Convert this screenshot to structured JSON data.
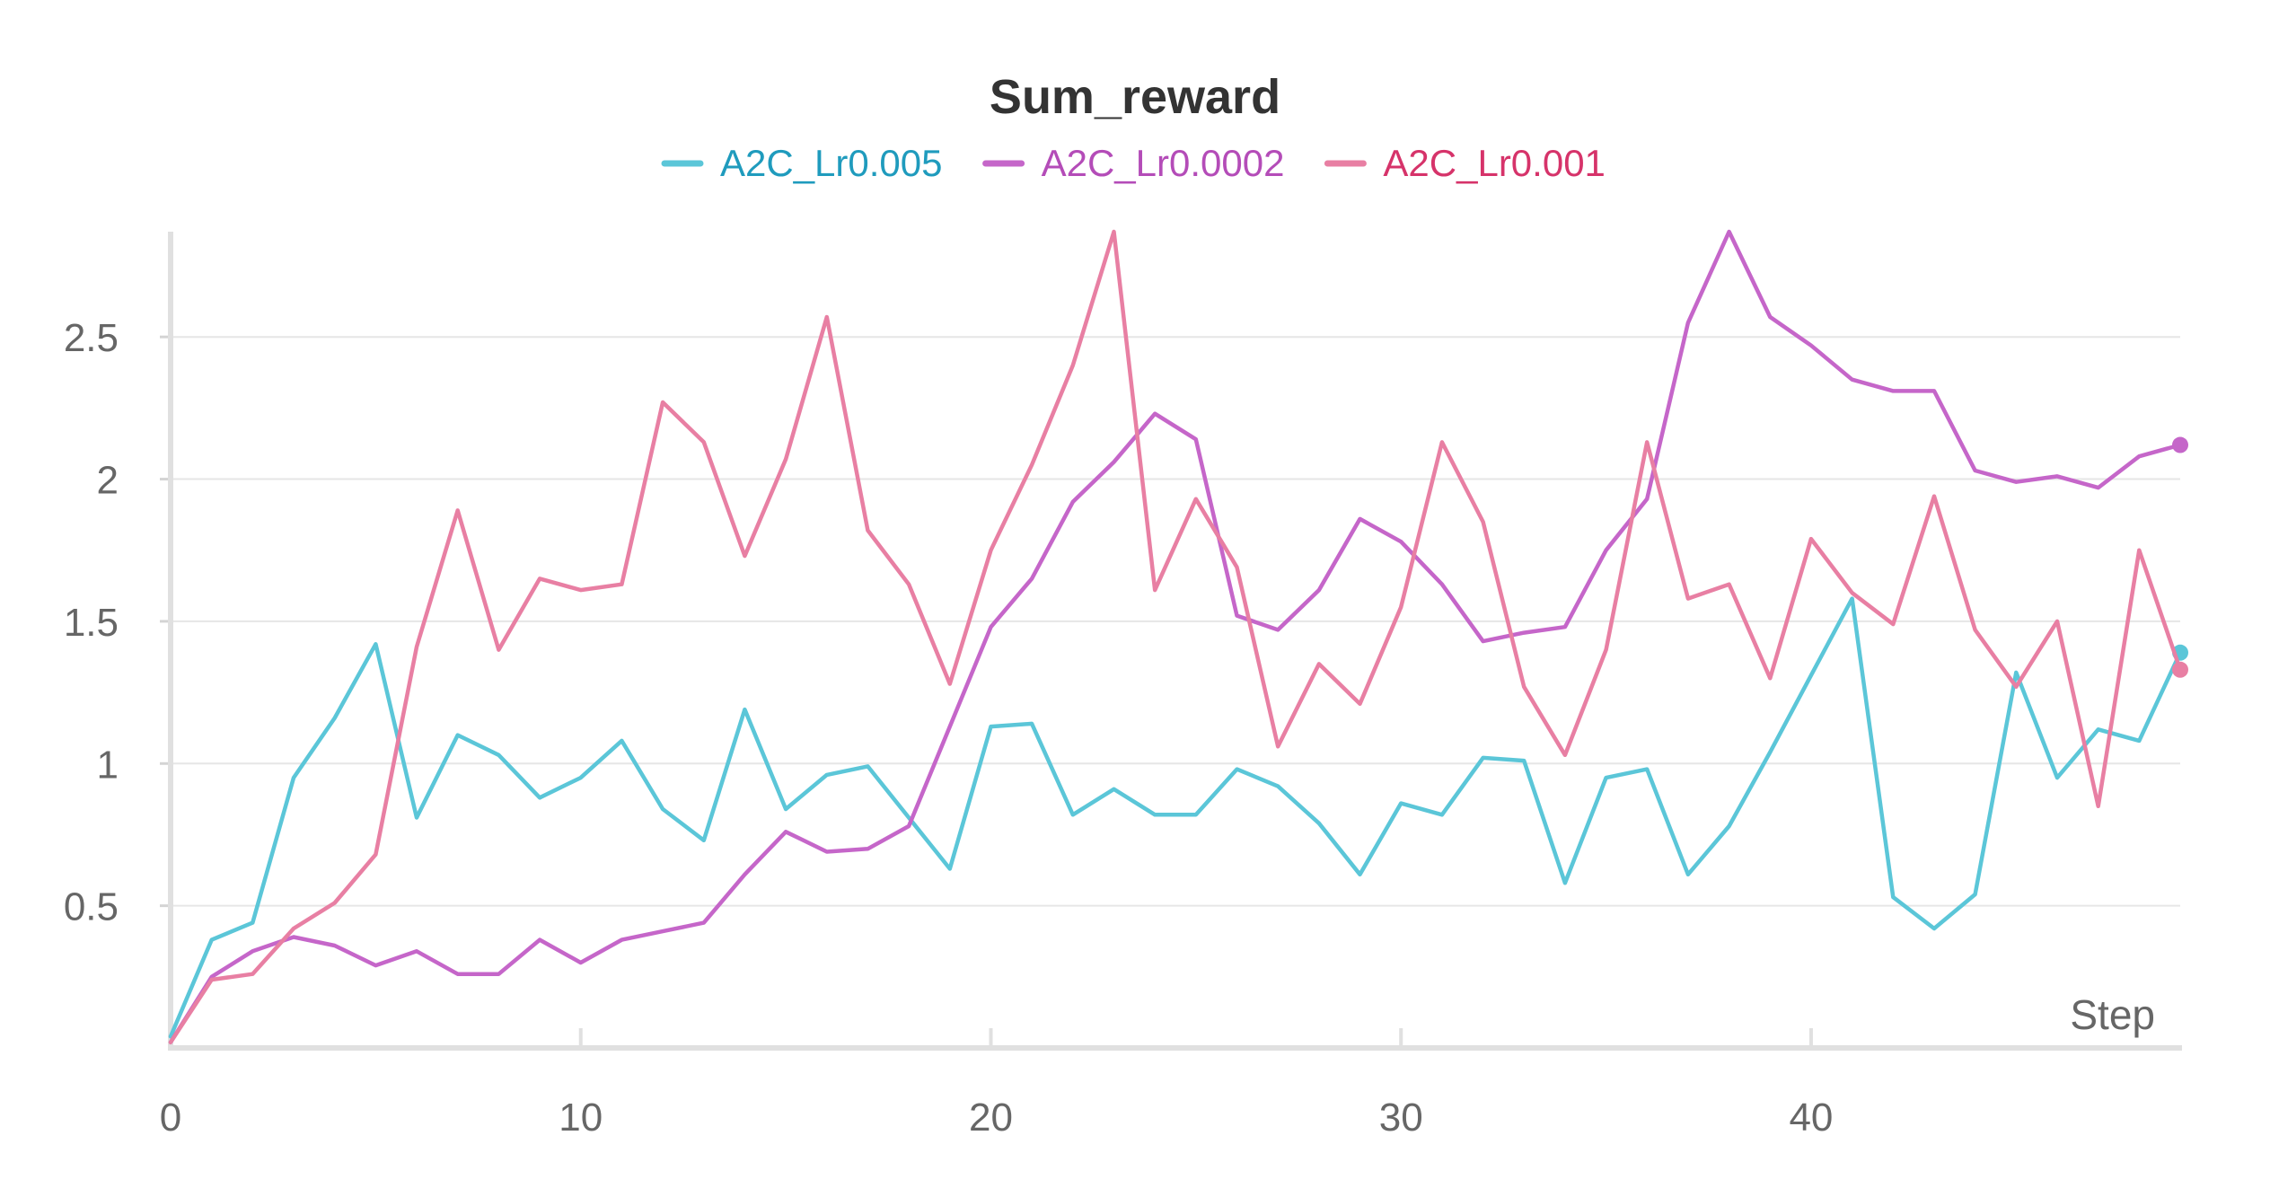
{
  "chart_data": {
    "type": "line",
    "title": "Sum_reward",
    "xlabel": "Step",
    "ylabel": "",
    "xlim": [
      0,
      49
    ],
    "ylim": [
      0,
      2.87
    ],
    "xticks": [
      0,
      10,
      20,
      30,
      40
    ],
    "xtick_labels": [
      "0",
      "10",
      "20",
      "30",
      "40"
    ],
    "yticks": [
      0.5,
      1,
      1.5,
      2,
      2.5
    ],
    "ytick_labels": [
      "0.5",
      "1",
      "1.5",
      "2",
      "2.5"
    ],
    "grid": true,
    "legend_position": "top-center",
    "x": [
      0,
      1,
      2,
      3,
      4,
      5,
      6,
      7,
      8,
      9,
      10,
      11,
      12,
      13,
      14,
      15,
      16,
      17,
      18,
      19,
      20,
      21,
      22,
      23,
      24,
      25,
      26,
      27,
      28,
      29,
      30,
      31,
      32,
      33,
      34,
      35,
      36,
      37,
      38,
      39,
      40,
      41,
      42,
      43,
      44,
      45,
      46,
      47,
      48,
      49
    ],
    "series": [
      {
        "name": "A2C_Lr0.005",
        "color": "#5bc6d8",
        "legend_text_color": "#1f9bbd",
        "values": [
          0.04,
          0.38,
          0.44,
          0.95,
          1.16,
          1.42,
          0.81,
          1.1,
          1.03,
          0.88,
          0.95,
          1.08,
          0.84,
          0.73,
          1.19,
          0.84,
          0.96,
          0.99,
          0.81,
          0.63,
          1.13,
          1.14,
          0.82,
          0.91,
          0.82,
          0.82,
          0.98,
          0.92,
          0.79,
          0.61,
          0.86,
          0.82,
          1.02,
          1.01,
          0.58,
          0.95,
          0.98,
          0.61,
          0.78,
          1.04,
          1.31,
          1.58,
          0.53,
          0.42,
          0.54,
          1.32,
          0.95,
          1.12,
          1.08,
          1.39
        ]
      },
      {
        "name": "A2C_Lr0.0002",
        "color": "#c566c9",
        "legend_text_color": "#b44cb8",
        "values": [
          0.02,
          0.25,
          0.34,
          0.39,
          0.36,
          0.29,
          0.34,
          0.26,
          0.26,
          0.38,
          0.3,
          0.38,
          0.41,
          0.44,
          0.61,
          0.76,
          0.69,
          0.7,
          0.78,
          1.13,
          1.48,
          1.65,
          1.92,
          2.06,
          2.23,
          2.14,
          1.52,
          1.47,
          1.61,
          1.86,
          1.78,
          1.63,
          1.43,
          1.46,
          1.48,
          1.75,
          1.93,
          2.55,
          2.87,
          2.57,
          2.47,
          2.35,
          2.31,
          2.31,
          2.03,
          1.99,
          2.01,
          1.97,
          2.08,
          2.12
        ]
      },
      {
        "name": "A2C_Lr0.001",
        "color": "#e87fa3",
        "legend_text_color": "#d6336a",
        "values": [
          0.02,
          0.24,
          0.26,
          0.42,
          0.51,
          0.68,
          1.41,
          1.89,
          1.4,
          1.65,
          1.61,
          1.63,
          2.27,
          2.13,
          1.73,
          2.07,
          2.57,
          1.82,
          1.63,
          1.28,
          1.75,
          2.05,
          2.4,
          2.87,
          1.61,
          1.93,
          1.69,
          1.06,
          1.35,
          1.21,
          1.55,
          2.13,
          1.85,
          1.27,
          1.03,
          1.4,
          2.13,
          1.58,
          1.63,
          1.3,
          1.79,
          1.6,
          1.49,
          1.94,
          1.47,
          1.27,
          1.5,
          0.85,
          1.75,
          1.33
        ]
      }
    ]
  }
}
